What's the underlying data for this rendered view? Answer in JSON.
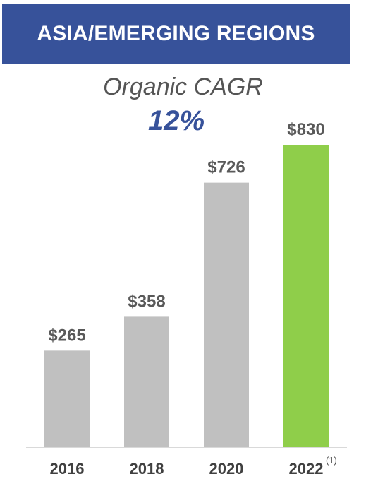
{
  "banner": {
    "title": "ASIA/EMERGING REGIONS"
  },
  "subtitle": "Organic CAGR",
  "cagr_value": "12%",
  "colors": {
    "banner": "#37529a",
    "bar": "#c0c0c0",
    "highlight_bar": "#8fce4a",
    "baseline": "#d9d9d9"
  },
  "chart_data": {
    "type": "bar",
    "title": "Organic CAGR",
    "xlabel": "",
    "ylabel": "",
    "categories": [
      "2016",
      "2018",
      "2020",
      "2022"
    ],
    "category_footnotes": [
      "",
      "",
      "",
      "(1)"
    ],
    "values": [
      265,
      358,
      726,
      830
    ],
    "value_labels": [
      "$265",
      "$358",
      "$726",
      "$830"
    ],
    "highlight_index": 3,
    "ylim": [
      0,
      830
    ],
    "grid": false,
    "legend": "none"
  }
}
